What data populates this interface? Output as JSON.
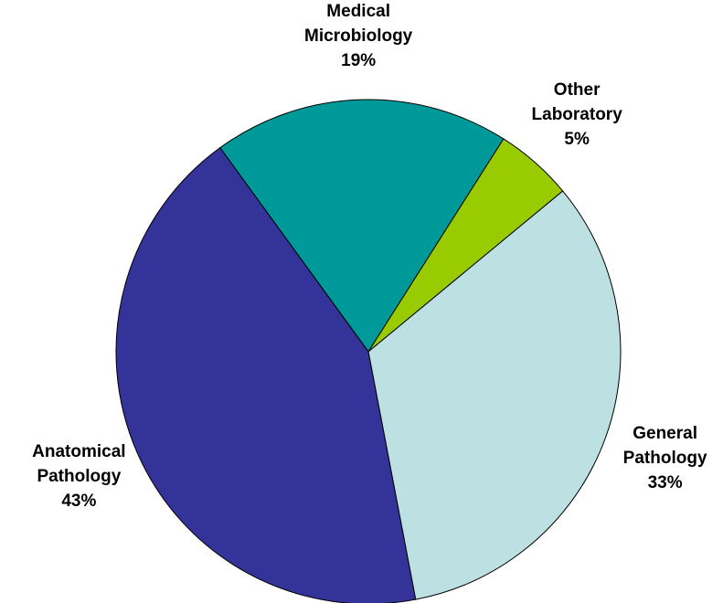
{
  "chart_data": {
    "type": "pie",
    "categories": [
      "Medical Microbiology",
      "Other Laboratory",
      "General Pathology",
      "Anatomical Pathology"
    ],
    "values": [
      19,
      5,
      33,
      43
    ],
    "value_labels": [
      "19%",
      "5%",
      "33%",
      "43%"
    ],
    "colors": [
      "#009999",
      "#99cc00",
      "#bde0e3",
      "#333399"
    ]
  }
}
